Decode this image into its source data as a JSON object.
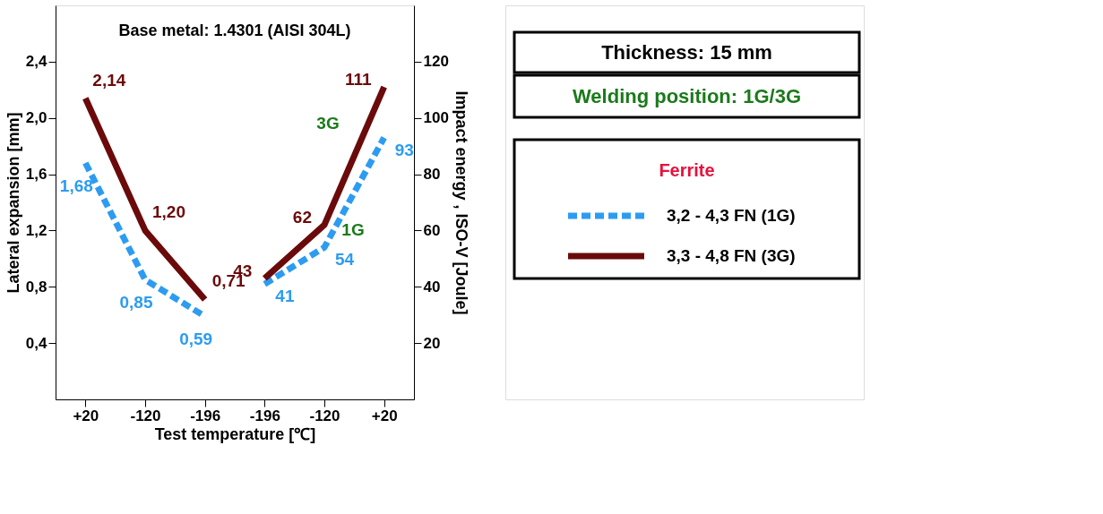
{
  "chart_data": {
    "type": "line",
    "categories": [
      "+20",
      "-120",
      "-196",
      "-196",
      "-120",
      "+20"
    ],
    "xlabel": "Test temperature [℃]",
    "ylabel": "Lateral expansion [mm]",
    "y2label": "Impact energy , ISO-V [Joule]",
    "ylim": [
      0,
      2.8
    ],
    "yticks": [
      {
        "value": 0.4,
        "label": "0,4"
      },
      {
        "value": 0.8,
        "label": "0,8"
      },
      {
        "value": 1.2,
        "label": "1,2"
      },
      {
        "value": 1.6,
        "label": "1,6"
      },
      {
        "value": 2.0,
        "label": "2,0"
      },
      {
        "value": 2.4,
        "label": "2,4"
      }
    ],
    "y2lim": [
      0,
      140
    ],
    "y2ticks": [
      20,
      40,
      60,
      80,
      100,
      120
    ],
    "legend_title": "Ferrite",
    "legend": "right",
    "grid": false,
    "marker": "none",
    "series": [
      {
        "name": "3,2 - 4,3 FN (1G)",
        "color": "#2d9cf0",
        "line_style": "dashed",
        "values": [
          1.68,
          0.85,
          0.59,
          null,
          null,
          null
        ],
        "value_labels": [
          "1,68",
          "0,85",
          "0,59",
          null,
          null,
          null
        ]
      },
      {
        "name": "3,3 - 4,8 FN (3G)",
        "color": "#6b0a0a",
        "line_style": "solid",
        "values": [
          2.14,
          1.2,
          0.71,
          null,
          null,
          null
        ],
        "value_labels": [
          "2,14",
          "1,20",
          "0,71",
          null,
          null,
          null
        ]
      },
      {
        "color": "#2d9cf0",
        "line_style": "dashed",
        "axis": "y2",
        "values": [
          null,
          null,
          null,
          41,
          54,
          93
        ],
        "value_labels": [
          null,
          null,
          null,
          "41",
          "54",
          "93"
        ]
      },
      {
        "color": "#6b0a0a",
        "line_style": "solid",
        "axis": "y2",
        "values": [
          null,
          null,
          null,
          43,
          62,
          111
        ],
        "value_labels": [
          null,
          null,
          null,
          "43",
          "62",
          "111"
        ]
      }
    ],
    "annotations": [
      "Base metal: 1.4301 (AISI 304L)",
      "Thickness: 15 mm",
      "Welding position: 1G/3G",
      "3G",
      "1G"
    ]
  }
}
